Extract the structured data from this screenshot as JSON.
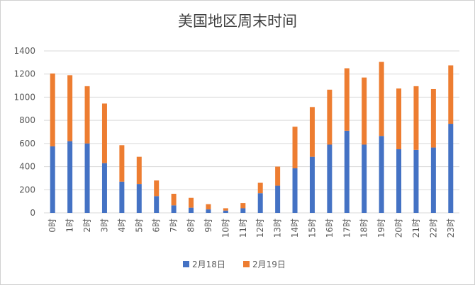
{
  "chart_data": {
    "type": "bar",
    "stacked": true,
    "title": "美国地区周末时间",
    "xlabel": "",
    "ylabel": "",
    "ylim": [
      0,
      1400
    ],
    "yticks": [
      0,
      200,
      400,
      600,
      800,
      1000,
      1200,
      1400
    ],
    "grid": true,
    "legend": "bottom",
    "categories": [
      "0时",
      "1时",
      "2时",
      "3时",
      "4时",
      "5时",
      "6时",
      "7时",
      "8时",
      "9时",
      "10时",
      "11时",
      "12时",
      "13时",
      "14时",
      "15时",
      "16时",
      "17时",
      "18时",
      "19时",
      "20时",
      "21时",
      "22时",
      "23时"
    ],
    "series": [
      {
        "name": "2月18日",
        "color": "#4472c4",
        "values": [
          575,
          620,
          600,
          430,
          270,
          250,
          145,
          65,
          45,
          30,
          20,
          40,
          170,
          235,
          385,
          485,
          590,
          710,
          590,
          665,
          550,
          545,
          565,
          770
        ]
      },
      {
        "name": "2月19日",
        "color": "#ed7d31",
        "values": [
          630,
          570,
          495,
          515,
          315,
          235,
          135,
          100,
          85,
          45,
          20,
          45,
          90,
          165,
          360,
          430,
          475,
          540,
          580,
          640,
          525,
          550,
          505,
          505
        ]
      }
    ]
  }
}
